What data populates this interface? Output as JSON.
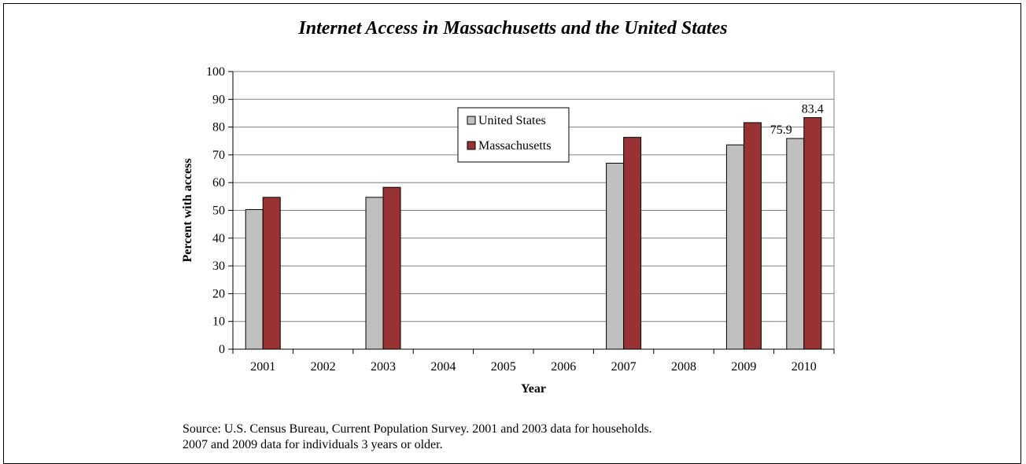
{
  "chart_data": {
    "type": "bar",
    "title": "Internet Access in Massachusetts and the United States",
    "xlabel": "Year",
    "ylabel": "Percent with access",
    "categories": [
      "2001",
      "2002",
      "2003",
      "2004",
      "2005",
      "2006",
      "2007",
      "2008",
      "2009",
      "2010"
    ],
    "series": [
      {
        "name": "United States",
        "color": "#c0c0c0",
        "values": [
          50.3,
          null,
          54.7,
          null,
          null,
          null,
          67.0,
          null,
          73.6,
          75.9
        ]
      },
      {
        "name": "Massachusetts",
        "color": "#993333",
        "values": [
          54.7,
          null,
          58.3,
          null,
          null,
          null,
          76.3,
          null,
          81.6,
          83.4
        ]
      }
    ],
    "ylim": [
      0,
      100
    ],
    "yticks": [
      "0",
      "10",
      "20",
      "30",
      "40",
      "50",
      "60",
      "70",
      "80",
      "90",
      "100"
    ],
    "data_labels": [
      {
        "series": 0,
        "category": "2010",
        "text": "75.9"
      },
      {
        "series": 1,
        "category": "2010",
        "text": "83.4"
      }
    ],
    "grid": true,
    "legend_position": "inside-top-center"
  },
  "source": {
    "line1": "Source: U.S. Census Bureau, Current Population Survey. 2001 and 2003 data for households.",
    "line2": "2007 and 2009 data for individuals 3 years or older."
  }
}
